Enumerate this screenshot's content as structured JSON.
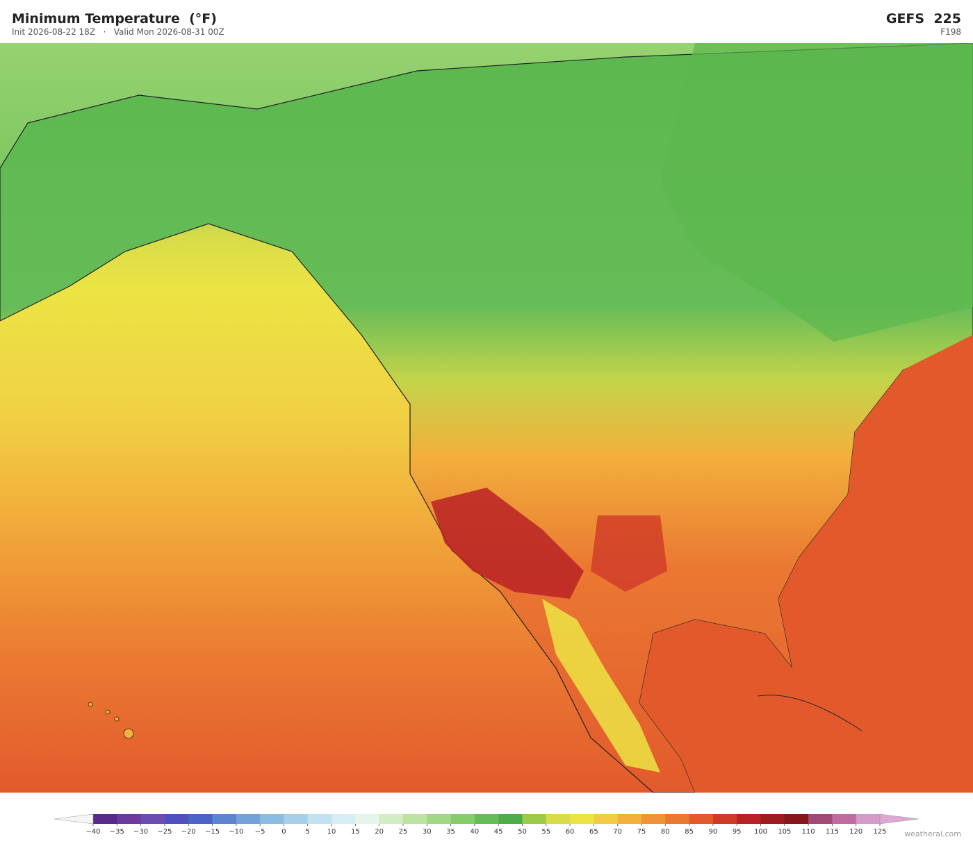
{
  "header": {
    "title": "Minimum Temperature  (°F)",
    "subtitle": "Init 2026-08-22 18Z   ·   Valid Mon 2026-08-31 00Z",
    "model": "GEFS  225",
    "forecast_hour": "F198"
  },
  "colorbar": {
    "ticks": [
      {
        "value": -40,
        "label": "−40"
      },
      {
        "value": -35,
        "label": "−35"
      },
      {
        "value": -30,
        "label": "−30"
      },
      {
        "value": -25,
        "label": "−25"
      },
      {
        "value": -20,
        "label": "−20"
      },
      {
        "value": -15,
        "label": "−15"
      },
      {
        "value": -10,
        "label": "−10"
      },
      {
        "value": -5,
        "label": "−5"
      },
      0,
      5,
      10,
      15,
      20,
      25,
      30,
      35,
      40,
      45,
      50,
      55,
      60,
      65,
      70,
      75,
      80,
      85,
      90,
      95,
      100,
      105,
      110,
      115,
      120,
      125
    ],
    "colors": [
      "#5a2a8a",
      "#6b3a9c",
      "#6b4cb0",
      "#4f4fc0",
      "#4c63c8",
      "#5c84d0",
      "#74a2d8",
      "#8cbce2",
      "#a6d0ea",
      "#c2e2f0",
      "#d6edf4",
      "#e6f4ea",
      "#d4ecc6",
      "#bce3a0",
      "#a0d884",
      "#84cc6c",
      "#66bc58",
      "#4eac48",
      "#9ccb48",
      "#d8dc48",
      "#ece444",
      "#f2cc44",
      "#f2b03c",
      "#ee9436",
      "#ea7832",
      "#e25a2c",
      "#d03a28",
      "#b82224",
      "#9c1c20",
      "#84161c",
      "#a04a78",
      "#c06ca0",
      "#d49ac8"
    ],
    "extend_colors": [
      "#f6f6f6",
      "#dca8d4"
    ]
  },
  "footer": {
    "credit": "weatherai.com"
  }
}
